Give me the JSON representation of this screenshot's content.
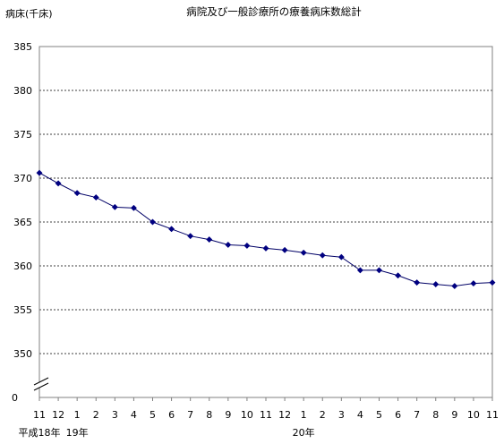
{
  "chart_data": {
    "type": "line",
    "title": "病院及び一般診療所の療養病床数総計",
    "ylabel": "病床(千床)",
    "xlabel": "",
    "ylim": [
      350,
      385
    ],
    "y_axis_bottom_label": "0",
    "y_axis_broken": true,
    "yticks": [
      350,
      355,
      360,
      365,
      370,
      375,
      380,
      385
    ],
    "ytick_labels": [
      "350",
      "355",
      "360",
      "365",
      "370",
      "375",
      "380",
      "385"
    ],
    "grid": "horizontal-dashed",
    "categories": [
      "11",
      "12",
      "1",
      "2",
      "3",
      "4",
      "5",
      "6",
      "7",
      "8",
      "9",
      "10",
      "11",
      "12",
      "1",
      "2",
      "3",
      "4",
      "5",
      "6",
      "7",
      "8",
      "9",
      "10",
      "11"
    ],
    "year_labels": [
      {
        "index": 0,
        "text": "平成18年"
      },
      {
        "index": 2,
        "text": "19年"
      },
      {
        "index": 14,
        "text": "20年"
      }
    ],
    "series": [
      {
        "name": "",
        "values": [
          370.6,
          369.4,
          368.3,
          367.8,
          366.7,
          366.6,
          365.0,
          364.2,
          363.4,
          363.0,
          362.4,
          362.3,
          362.0,
          361.8,
          361.5,
          361.2,
          361.0,
          359.5,
          359.5,
          358.9,
          358.1,
          357.9,
          357.7,
          358.0,
          358.1
        ]
      }
    ],
    "colors": {
      "line": "#000066",
      "marker": "#000080",
      "grid": "#000000",
      "axis": "#808080"
    }
  }
}
